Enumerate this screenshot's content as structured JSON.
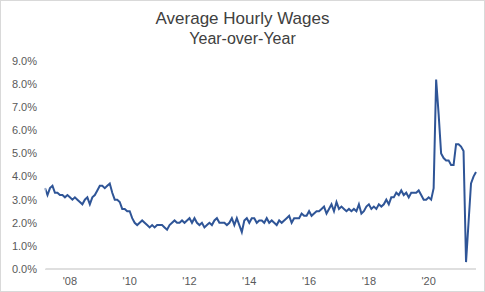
{
  "chart_data": {
    "type": "line",
    "title": "Average Hourly Wages",
    "subtitle": "Year-over-Year",
    "categories": [
      null,
      null,
      null,
      null,
      null,
      null,
      null,
      null,
      null,
      null,
      "'08",
      null,
      null,
      null,
      null,
      null,
      null,
      null,
      null,
      null,
      null,
      null,
      null,
      null,
      null,
      null,
      null,
      null,
      null,
      null,
      null,
      null,
      null,
      null,
      "'10",
      null,
      null,
      null,
      null,
      null,
      null,
      null,
      null,
      null,
      null,
      null,
      null,
      null,
      null,
      null,
      null,
      null,
      null,
      null,
      null,
      null,
      null,
      null,
      "'12",
      null,
      null,
      null,
      null,
      null,
      null,
      null,
      null,
      null,
      null,
      null,
      null,
      null,
      null,
      null,
      null,
      null,
      null,
      null,
      null,
      null,
      null,
      null,
      "'14",
      null,
      null,
      null,
      null,
      null,
      null,
      null,
      null,
      null,
      null,
      null,
      null,
      null,
      null,
      null,
      null,
      null,
      null,
      null,
      null,
      null,
      null,
      null,
      "'16",
      null,
      null,
      null,
      null,
      null,
      null,
      null,
      null,
      null,
      null,
      null,
      null,
      null,
      null,
      null,
      null,
      null,
      null,
      null,
      null,
      null,
      null,
      null,
      "'18",
      null,
      null,
      null,
      null,
      null,
      null,
      null,
      null,
      null,
      null,
      null,
      null,
      null,
      null,
      null,
      null,
      null,
      null,
      null,
      null,
      null,
      null,
      null,
      "'20",
      null,
      null,
      null,
      null,
      null,
      null,
      null,
      null,
      null,
      null,
      null,
      null,
      null,
      null,
      null,
      null,
      null,
      null,
      null
    ],
    "values": [
      3.5,
      3.2,
      3.5,
      3.6,
      3.3,
      3.3,
      3.2,
      3.2,
      3.1,
      3.2,
      3.1,
      3.0,
      3.1,
      3.0,
      2.9,
      2.8,
      3.0,
      3.1,
      2.8,
      3.1,
      3.2,
      3.4,
      3.6,
      3.6,
      3.5,
      3.6,
      3.7,
      3.3,
      3.0,
      3.0,
      2.9,
      2.6,
      2.6,
      2.5,
      2.5,
      2.2,
      2.0,
      1.9,
      2.0,
      2.1,
      2.0,
      1.9,
      1.8,
      1.9,
      1.8,
      1.9,
      1.9,
      1.9,
      1.8,
      1.7,
      1.9,
      2.0,
      2.1,
      2.0,
      2.0,
      2.1,
      2.0,
      2.1,
      2.2,
      2.0,
      2.2,
      2.0,
      1.9,
      2.0,
      1.8,
      1.9,
      2.0,
      1.9,
      2.1,
      2.2,
      2.0,
      2.0,
      2.0,
      1.9,
      2.0,
      2.2,
      1.9,
      2.2,
      1.9,
      1.6,
      2.1,
      2.2,
      2.0,
      2.2,
      2.2,
      2.0,
      2.1,
      2.1,
      2.0,
      2.2,
      2.0,
      2.1,
      2.0,
      1.9,
      2.1,
      2.0,
      2.1,
      2.2,
      2.3,
      2.0,
      2.2,
      2.2,
      2.2,
      2.4,
      2.3,
      2.3,
      2.5,
      2.3,
      2.4,
      2.5,
      2.5,
      2.6,
      2.7,
      2.4,
      2.6,
      2.8,
      2.5,
      2.9,
      2.6,
      2.7,
      2.6,
      2.5,
      2.6,
      2.5,
      2.6,
      2.5,
      2.8,
      2.4,
      2.5,
      2.7,
      2.8,
      2.6,
      2.7,
      2.6,
      2.8,
      2.7,
      2.8,
      3.0,
      2.8,
      3.1,
      3.1,
      3.3,
      3.2,
      3.4,
      3.2,
      3.3,
      3.1,
      3.3,
      3.3,
      3.3,
      3.4,
      3.2,
      3.0,
      3.0,
      3.1,
      3.0,
      3.5,
      8.2,
      6.7,
      5.0,
      4.8,
      4.7,
      4.7,
      4.5,
      4.5,
      5.4,
      5.4,
      5.3,
      5.1,
      0.3,
      2.0,
      3.7,
      4.0,
      4.2
    ],
    "color": "#2f5597",
    "ylim": [
      0,
      9
    ],
    "yticks": [
      {
        "value": 0,
        "label": "0.0%"
      },
      {
        "value": 1,
        "label": "1.0%"
      },
      {
        "value": 2,
        "label": "2.0%"
      },
      {
        "value": 3,
        "label": "3.0%"
      },
      {
        "value": 4,
        "label": "4.0%"
      },
      {
        "value": 5,
        "label": "5.0%"
      },
      {
        "value": 6,
        "label": "6.0%"
      },
      {
        "value": 7,
        "label": "7.0%"
      },
      {
        "value": 8,
        "label": "8.0%"
      },
      {
        "value": 9,
        "label": "9.0%"
      }
    ],
    "grid": false
  }
}
